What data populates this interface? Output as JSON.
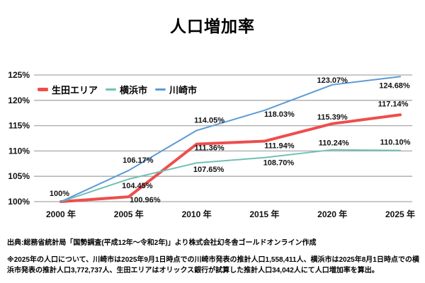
{
  "title": "人口増加率",
  "chart_data": {
    "type": "line",
    "title": "人口増加率",
    "categories": [
      "2000 年",
      "2005 年",
      "2010 年",
      "2015 年",
      "2020 年",
      "2025 年"
    ],
    "xlabel": "",
    "ylabel": "",
    "ylim": [
      100,
      125
    ],
    "grid": true,
    "legend_position": "top-left-inside",
    "colors": {
      "grid": "#a9a9a9",
      "text": "#111111",
      "background": "#ffffff"
    },
    "y_ticks": [
      {
        "label": "100%",
        "value": 100
      },
      {
        "label": "105%",
        "value": 105
      },
      {
        "label": "110%",
        "value": 110
      },
      {
        "label": "115%",
        "value": 115
      },
      {
        "label": "120%",
        "value": 120
      },
      {
        "label": "125%",
        "value": 125
      }
    ],
    "series": [
      {
        "name": "生田エリア",
        "color": "#ee4d4d",
        "line_width": 4,
        "values": [
          100,
          100.96,
          111.36,
          111.94,
          115.39,
          117.14
        ],
        "labels": [
          {
            "text": "100%",
            "dx": -2,
            "dy": -12
          },
          {
            "text": "100.96%",
            "dx": 23,
            "dy": 4
          },
          {
            "text": "111.36%",
            "dx": 18,
            "dy": 5
          },
          {
            "text": "111.94%",
            "dx": 21,
            "dy": 6
          },
          {
            "text": "115.39%",
            "dx": 0,
            "dy": -10
          },
          {
            "text": "117.14%",
            "dx": -10,
            "dy": -16
          }
        ]
      },
      {
        "name": "横浜市",
        "color": "#72c0b5",
        "line_width": 2,
        "values": [
          100,
          104.45,
          107.65,
          108.7,
          110.24,
          110.1
        ],
        "labels": [
          {
            "text": "",
            "dx": 0,
            "dy": 0
          },
          {
            "text": "104.45%",
            "dx": 12,
            "dy": 9
          },
          {
            "text": "107.65%",
            "dx": 17,
            "dy": 9
          },
          {
            "text": "108.70%",
            "dx": 20,
            "dy": 7
          },
          {
            "text": "110.24%",
            "dx": 2,
            "dy": -10
          },
          {
            "text": "110.10%",
            "dx": -7,
            "dy": -12
          }
        ]
      },
      {
        "name": "川崎市",
        "color": "#5b9bd5",
        "line_width": 2,
        "values": [
          100,
          106.17,
          114.05,
          118.03,
          123.07,
          124.68
        ],
        "labels": [
          {
            "text": "",
            "dx": 0,
            "dy": 0
          },
          {
            "text": "106.17%",
            "dx": 13,
            "dy": -15
          },
          {
            "text": "114.05%",
            "dx": 18,
            "dy": -15
          },
          {
            "text": "118.03%",
            "dx": 21,
            "dy": 5
          },
          {
            "text": "123.07%",
            "dx": 0,
            "dy": -7
          },
          {
            "text": "124.68%",
            "dx": -8,
            "dy": 12
          }
        ]
      }
    ]
  },
  "source": "出典:総務省統計局「国勢調査(平成12年〜令和2年)」より株式会社幻冬舎ゴールドオンライン作成",
  "footnote": "※2025年の人口について、川崎市は2025年9月1日時点での川崎市発表の推計人口1,558,411人、横浜市は2025年8月1日時点での横浜市発表の推計人口3,772,737人、生田エリアはオリックス銀行が試算した推計人口34,042人にて人口増加率を算出。"
}
